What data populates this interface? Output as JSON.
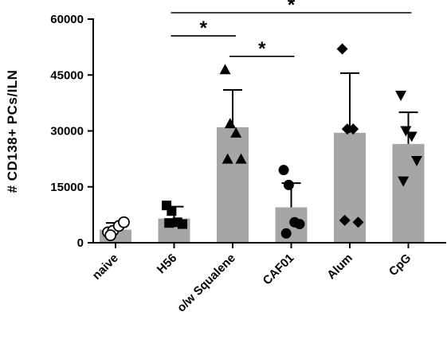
{
  "chart_data": {
    "type": "bar",
    "title": "",
    "xlabel": "",
    "ylabel": "# CD138+ PCs/ILN",
    "ylim": [
      0,
      60000
    ],
    "yticks": [
      0,
      15000,
      30000,
      45000,
      60000
    ],
    "grid": false,
    "categories": [
      "naive",
      "H56",
      "o/w Squalene",
      "CAF01",
      "Alum",
      "CpG"
    ],
    "values": [
      3500,
      6500,
      31000,
      9500,
      29500,
      26500
    ],
    "sd": [
      1800,
      3200,
      10000,
      6500,
      16000,
      8500
    ],
    "markers": [
      "circle-open",
      "square",
      "triangle-up",
      "circle",
      "diamond",
      "triangle-down"
    ],
    "points": [
      [
        2800,
        3200,
        4500,
        5500,
        2000
      ],
      [
        10000,
        8500,
        5500,
        5000,
        5300
      ],
      [
        46500,
        32000,
        29500,
        22500,
        22500
      ],
      [
        19500,
        15500,
        5500,
        5000,
        2500
      ],
      [
        52000,
        30500,
        30500,
        5500,
        6000
      ],
      [
        39500,
        30000,
        28500,
        22000,
        16500
      ]
    ],
    "significance": [
      {
        "from": 1,
        "to": 5,
        "label": "*",
        "y": 62500
      },
      {
        "from": 1,
        "to": 2,
        "label": "*",
        "y": 55500
      },
      {
        "from": 2,
        "to": 3,
        "label": "*",
        "y": 50000
      }
    ],
    "colors": {
      "bar": "#a6a6a6",
      "marker": "#000000",
      "axis": "#000000"
    }
  }
}
